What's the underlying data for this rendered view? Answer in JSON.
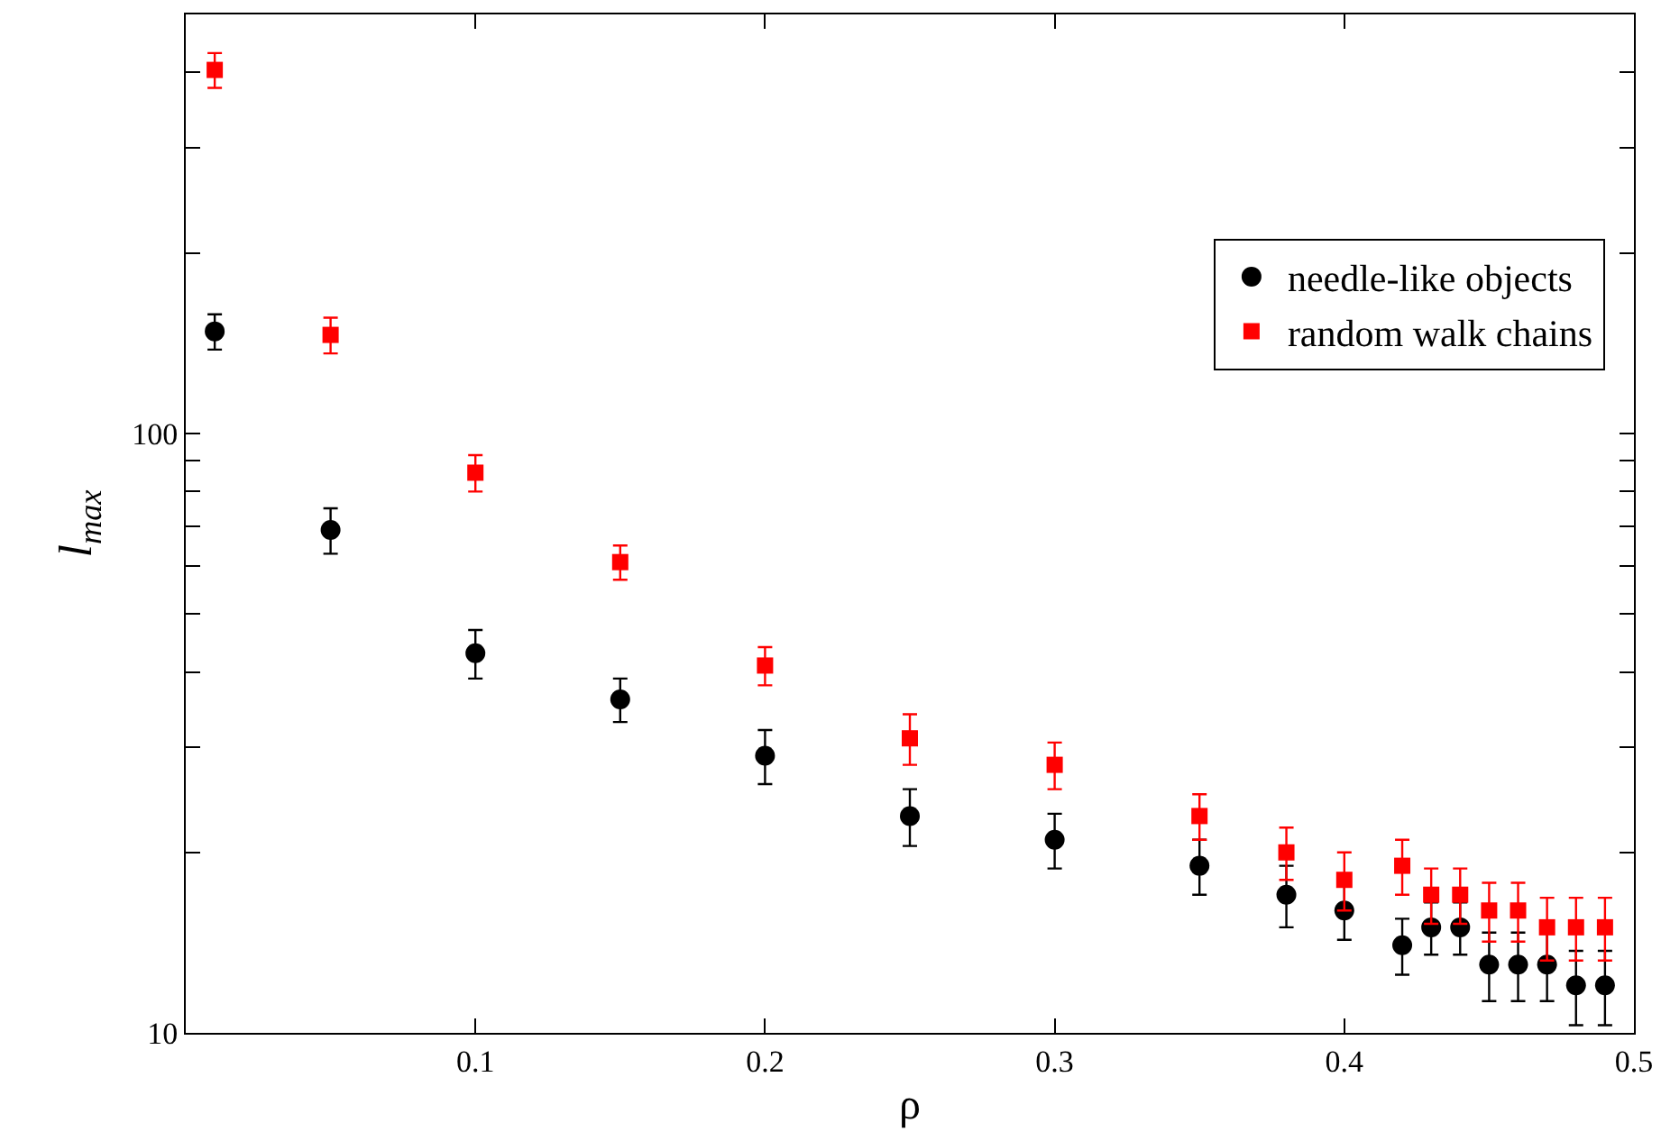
{
  "chart_data": {
    "type": "scatter",
    "xlabel": "ρ",
    "ylabel": "l$_{max}$",
    "log": "y",
    "grid": false,
    "legend": "right",
    "x": [
      0.01,
      0.05,
      0.1,
      0.15,
      0.2,
      0.25,
      0.3,
      0.35,
      0.38,
      0.4,
      0.42,
      0.43,
      0.44,
      0.45,
      0.46,
      0.47,
      0.48,
      0.49
    ],
    "xlim": [
      0,
      0.5
    ],
    "xticks": [
      0.1,
      0.2,
      0.3,
      0.4,
      0.5
    ],
    "ylim": [
      10,
      500
    ],
    "yticks": [
      10,
      {
        "value": 20,
        "label": null
      },
      {
        "value": 30,
        "label": null
      },
      {
        "value": 40,
        "label": null
      },
      {
        "value": 50,
        "label": null
      },
      {
        "value": 60,
        "label": null
      },
      {
        "value": 70,
        "label": null
      },
      {
        "value": 80,
        "label": null
      },
      {
        "value": 90,
        "label": null
      },
      100,
      {
        "value": 200,
        "label": null
      },
      {
        "value": 300,
        "label": null
      },
      {
        "value": 400,
        "label": null
      },
      {
        "value": 500,
        "label": null
      }
    ],
    "series": [
      {
        "name": "needle-like objects",
        "color": "#000000",
        "marker": "circle",
        "values": [
          148,
          69,
          43,
          36,
          29,
          23,
          21,
          19,
          17,
          16,
          14,
          15,
          15,
          13,
          13,
          13,
          12,
          12
        ],
        "errors": [
          10,
          6,
          4,
          3,
          3,
          2.5,
          2.2,
          2,
          2,
          1.7,
          1.5,
          1.5,
          1.5,
          1.7,
          1.7,
          1.7,
          1.7,
          1.7
        ]
      },
      {
        "name": "random walk chains",
        "color": "#ff0000",
        "marker": "square",
        "values": [
          404,
          146,
          86,
          61,
          41,
          31,
          28,
          23,
          20,
          18,
          19,
          17,
          17,
          16,
          16,
          15,
          15,
          15
        ],
        "errors": [
          27,
          10,
          6,
          4,
          3,
          3,
          2.5,
          2,
          2,
          2,
          2,
          1.8,
          1.8,
          1.8,
          1.8,
          1.8,
          1.8,
          1.8
        ]
      }
    ]
  }
}
